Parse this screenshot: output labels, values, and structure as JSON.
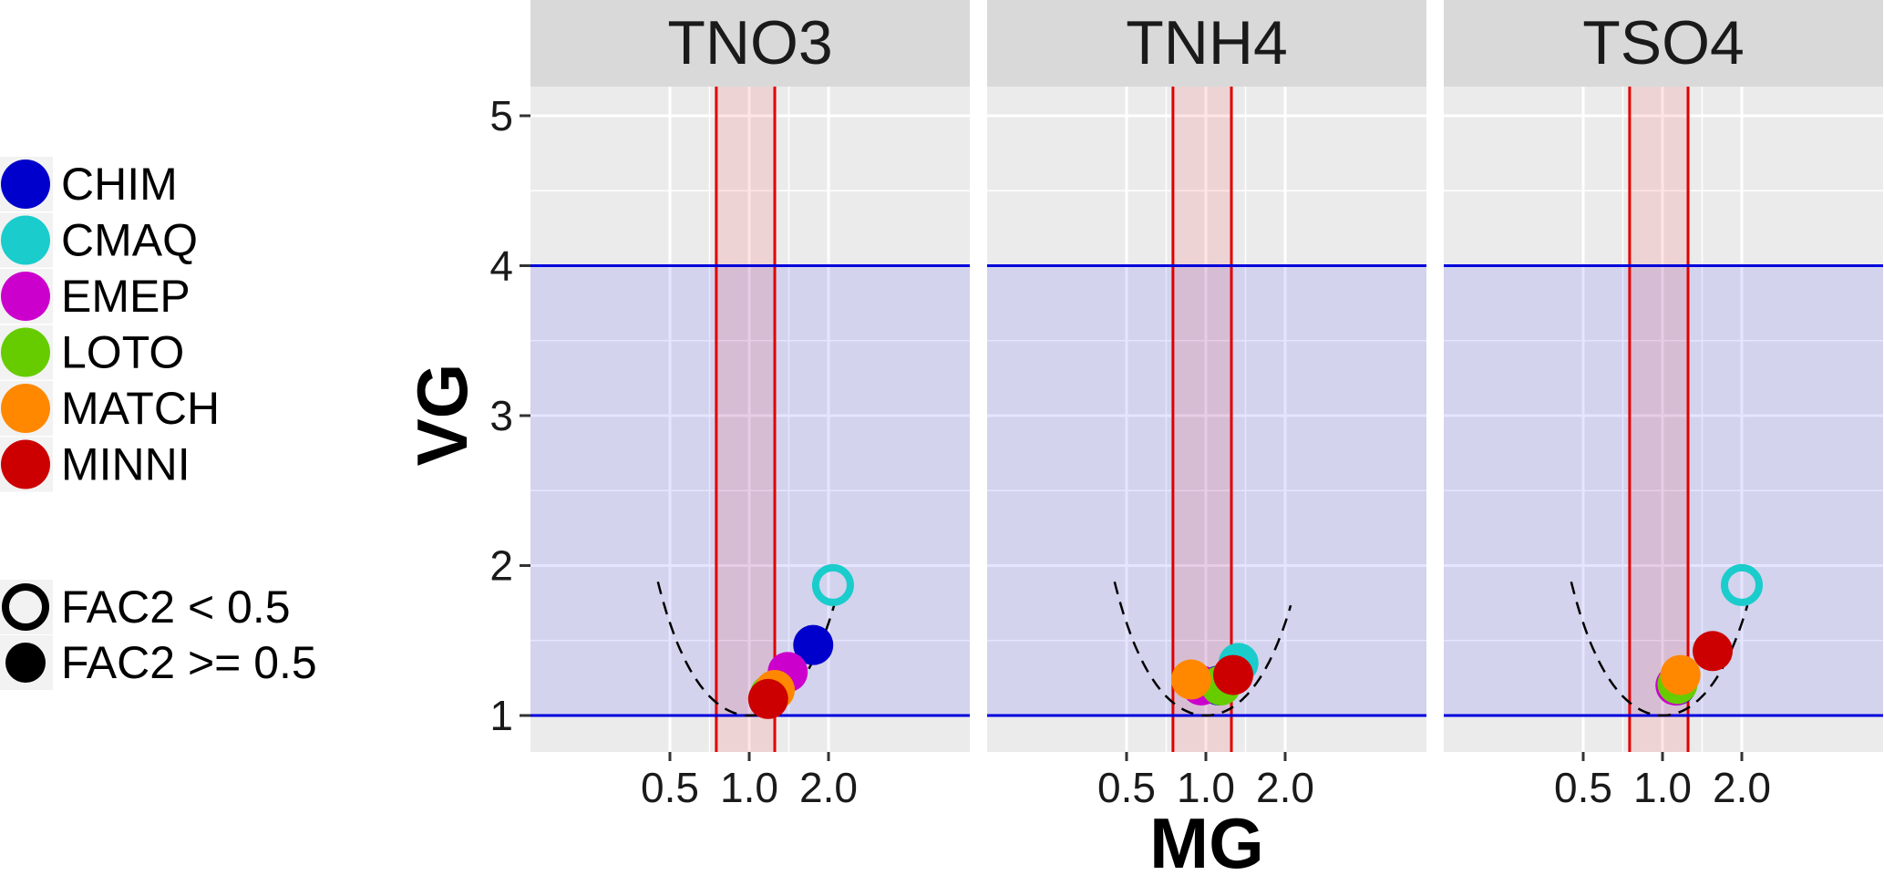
{
  "chart_data": {
    "type": "scatter",
    "title": "",
    "xlabel": "MG",
    "ylabel": "VG",
    "x_scale": "log",
    "x_ticks": [
      "0.5",
      "1.0",
      "2.0"
    ],
    "y_ticks": [
      "1",
      "2",
      "3",
      "4",
      "5"
    ],
    "ylim": [
      0.85,
      5.2
    ],
    "grid": true,
    "legend": {
      "models": [
        {
          "name": "CHIM",
          "color": "#0000cc"
        },
        {
          "name": "CMAQ",
          "color": "#1acccc"
        },
        {
          "name": "EMEP",
          "color": "#cc00cc"
        },
        {
          "name": "LOTO",
          "color": "#66cc00"
        },
        {
          "name": "MATCH",
          "color": "#ff8800"
        },
        {
          "name": "MINNI",
          "color": "#cc0000"
        }
      ],
      "shapes": [
        {
          "label": "FAC2 < 0.5",
          "filled": false
        },
        {
          "label": "FAC2 >= 0.5",
          "filled": true
        }
      ]
    },
    "reference": {
      "mg_band": [
        0.75,
        1.25
      ],
      "vg_band": [
        1,
        4
      ]
    },
    "panels": [
      {
        "title": "TNO3",
        "points": [
          {
            "model": "CHIM",
            "mg": 1.75,
            "vg": 1.47,
            "fac2_ok": true
          },
          {
            "model": "CMAQ",
            "mg": 2.08,
            "vg": 1.87,
            "fac2_ok": false
          },
          {
            "model": "EMEP",
            "mg": 1.4,
            "vg": 1.29,
            "fac2_ok": true
          },
          {
            "model": "LOTO",
            "mg": 1.2,
            "vg": 1.14,
            "fac2_ok": true
          },
          {
            "model": "MATCH",
            "mg": 1.25,
            "vg": 1.17,
            "fac2_ok": true
          },
          {
            "model": "MINNI",
            "mg": 1.18,
            "vg": 1.11,
            "fac2_ok": true
          }
        ]
      },
      {
        "title": "TNH4",
        "points": [
          {
            "model": "CHIM",
            "mg": 1.12,
            "vg": 1.2,
            "fac2_ok": true
          },
          {
            "model": "CMAQ",
            "mg": 1.33,
            "vg": 1.35,
            "fac2_ok": true
          },
          {
            "model": "EMEP",
            "mg": 0.96,
            "vg": 1.2,
            "fac2_ok": true
          },
          {
            "model": "LOTO",
            "mg": 1.14,
            "vg": 1.2,
            "fac2_ok": true
          },
          {
            "model": "MATCH",
            "mg": 0.88,
            "vg": 1.24,
            "fac2_ok": true
          },
          {
            "model": "MINNI",
            "mg": 1.27,
            "vg": 1.27,
            "fac2_ok": true
          }
        ]
      },
      {
        "title": "TSO4",
        "points": [
          {
            "model": "CHIM",
            "mg": 1.13,
            "vg": 1.2,
            "fac2_ok": true
          },
          {
            "model": "CMAQ",
            "mg": 2.0,
            "vg": 1.87,
            "fac2_ok": false
          },
          {
            "model": "EMEP",
            "mg": 1.12,
            "vg": 1.2,
            "fac2_ok": true
          },
          {
            "model": "LOTO",
            "mg": 1.14,
            "vg": 1.21,
            "fac2_ok": true
          },
          {
            "model": "MATCH",
            "mg": 1.17,
            "vg": 1.27,
            "fac2_ok": true
          },
          {
            "model": "MINNI",
            "mg": 1.55,
            "vg": 1.43,
            "fac2_ok": true
          }
        ]
      }
    ]
  }
}
